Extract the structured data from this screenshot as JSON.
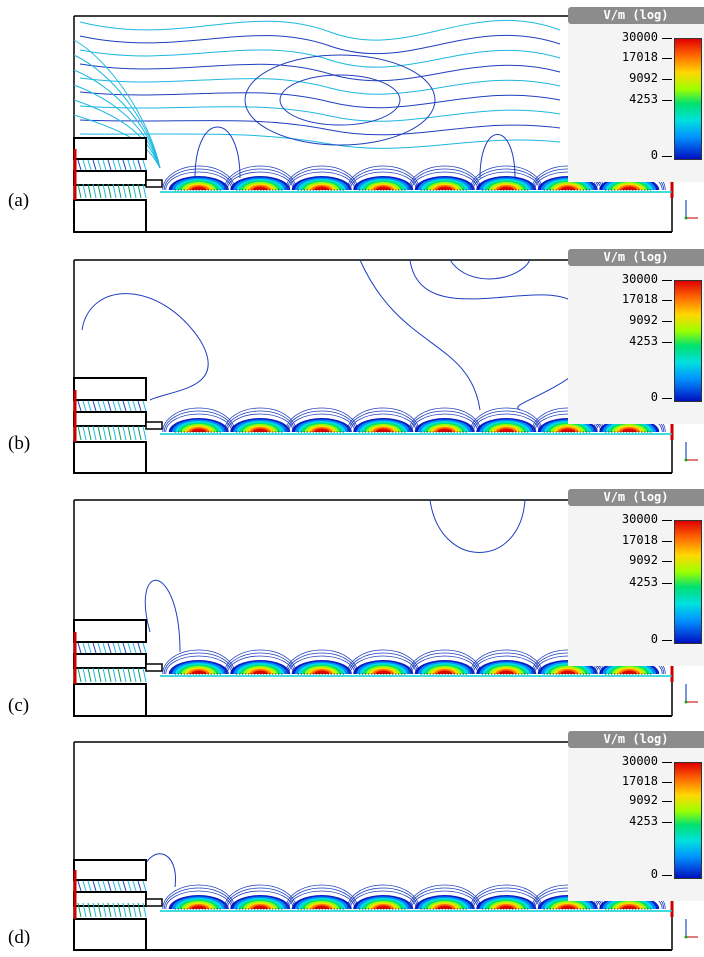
{
  "figure": {
    "panels": [
      {
        "id": "a",
        "label": "(a)"
      },
      {
        "id": "b",
        "label": "(b)"
      },
      {
        "id": "c",
        "label": "(c)"
      },
      {
        "id": "d",
        "label": "(d)"
      }
    ],
    "legend": {
      "unit": "V/m (log)",
      "ticks": [
        "30000",
        "17018",
        "9092",
        "4253",
        "0"
      ]
    },
    "colors": {
      "contour_blue": "#1f3fbf",
      "contour_cyan": "#1fb8e0",
      "frame": "#000000",
      "electrode_red": "#cc0000"
    }
  }
}
